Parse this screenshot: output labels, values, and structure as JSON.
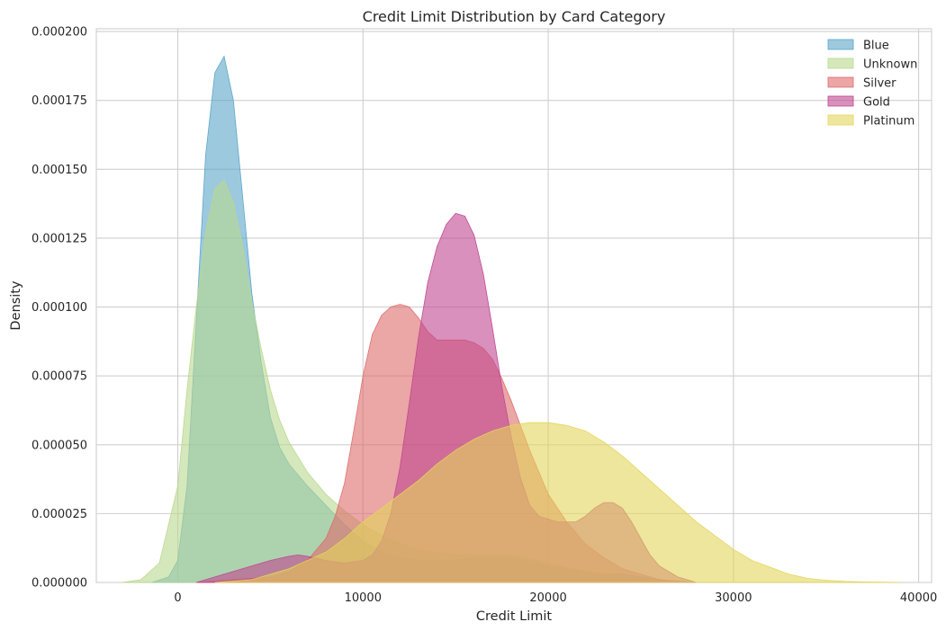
{
  "chart_data": {
    "type": "area",
    "title": "Credit Limit Distribution by Card Category",
    "xlabel": "Credit Limit",
    "ylabel": "Density",
    "xlim": [
      -4400,
      40700
    ],
    "ylim": [
      0,
      0.000201
    ],
    "x_ticks": [
      0,
      10000,
      20000,
      30000,
      40000
    ],
    "x_tick_labels": [
      "0",
      "10000",
      "20000",
      "30000",
      "40000"
    ],
    "y_ticks": [
      0,
      2.5e-05,
      5e-05,
      7.5e-05,
      0.0001,
      0.000125,
      0.00015,
      0.000175,
      0.0002
    ],
    "y_tick_labels": [
      "0.000000",
      "0.000025",
      "0.000050",
      "0.000075",
      "0.000100",
      "0.000125",
      "0.000150",
      "0.000175",
      "0.000200"
    ],
    "grid": true,
    "legend_position": "top-right",
    "series": [
      {
        "name": "Blue",
        "color": "#5aa5c8",
        "x": [
          -1400,
          -500,
          0,
          500,
          1000,
          1500,
          2000,
          2500,
          3000,
          3500,
          4000,
          4500,
          5000,
          5500,
          6000,
          7000,
          8000,
          9000,
          10000,
          11000,
          12000,
          13000,
          14000,
          15000,
          16000,
          17000,
          18000,
          19000,
          20000,
          21000,
          22000,
          23000,
          24000,
          25000,
          26000,
          27000,
          28000
        ],
        "values": [
          0,
          2e-06,
          8e-06,
          3.5e-05,
          9.5e-05,
          0.000155,
          0.000185,
          0.000191,
          0.000175,
          0.00014,
          0.000105,
          8e-05,
          6e-05,
          4.9e-05,
          4.3e-05,
          3.5e-05,
          2.8e-05,
          2.1e-05,
          1.5e-05,
          1.1e-05,
          9e-06,
          8e-06,
          8e-06,
          8e-06,
          9e-06,
          9e-06,
          9e-06,
          8e-06,
          6e-06,
          5e-06,
          4e-06,
          3e-06,
          3e-06,
          2e-06,
          1e-06,
          5e-07,
          0
        ]
      },
      {
        "name": "Unknown",
        "color": "#b9d88e",
        "x": [
          -3000,
          -2000,
          -1000,
          0,
          500,
          1000,
          1500,
          2000,
          2500,
          3000,
          3500,
          4000,
          4500,
          5000,
          5500,
          6000,
          7000,
          8000,
          9000,
          10000,
          11000,
          12000,
          13000,
          14000,
          15000,
          16000,
          17000,
          18000,
          19000,
          20000,
          22000,
          24000,
          26000
        ],
        "values": [
          0,
          1e-06,
          7e-06,
          3.5e-05,
          7e-05,
          0.0001,
          0.000127,
          0.000143,
          0.000146,
          0.000138,
          0.000122,
          0.000102,
          8.5e-05,
          7e-05,
          5.9e-05,
          5.1e-05,
          4e-05,
          3.2e-05,
          2.6e-05,
          2.1e-05,
          1.7e-05,
          1.4e-05,
          1.2e-05,
          1.1e-05,
          1e-05,
          1e-05,
          1e-05,
          1e-05,
          9e-06,
          7e-06,
          4e-06,
          2e-06,
          0
        ]
      },
      {
        "name": "Silver",
        "color": "#de6b6b",
        "x": [
          1000,
          3000,
          5000,
          6000,
          7000,
          8000,
          8500,
          9000,
          9500,
          10000,
          10500,
          11000,
          11500,
          12000,
          12500,
          13000,
          13500,
          14000,
          14500,
          15000,
          15500,
          16000,
          16500,
          17000,
          17500,
          18000,
          19000,
          20000,
          21000,
          22000,
          23000,
          24000,
          25000,
          26000,
          27000,
          28000
        ],
        "values": [
          0,
          1e-06,
          2e-06,
          4e-06,
          8e-06,
          1.6e-05,
          2.4e-05,
          3.6e-05,
          5.5e-05,
          7.5e-05,
          9e-05,
          9.7e-05,
          0.0001,
          0.000101,
          0.0001,
          9.6e-05,
          9.1e-05,
          8.8e-05,
          8.8e-05,
          8.8e-05,
          8.8e-05,
          8.7e-05,
          8.5e-05,
          8.1e-05,
          7.4e-05,
          6.6e-05,
          4.8e-05,
          3.2e-05,
          2.2e-05,
          1.4e-05,
          9e-06,
          5e-06,
          3e-06,
          1e-06,
          5e-07,
          0
        ]
      },
      {
        "name": "Gold",
        "color": "#c0468f",
        "x": [
          1000,
          2500,
          4000,
          5000,
          6000,
          6500,
          7000,
          8000,
          9000,
          10000,
          10500,
          11000,
          11500,
          12000,
          12500,
          13000,
          13500,
          14000,
          14500,
          15000,
          15500,
          16000,
          16500,
          17000,
          17500,
          18000,
          18500,
          19000,
          19500,
          20000,
          20500,
          21000,
          21500,
          22000,
          22500,
          23000,
          23500,
          24000,
          24500,
          25000,
          25500,
          26000,
          27000,
          28000
        ],
        "values": [
          0,
          3e-06,
          6e-06,
          8e-06,
          9.5e-06,
          1e-05,
          9.5e-06,
          8e-06,
          7e-06,
          8e-06,
          1e-05,
          1.5e-05,
          2.5e-05,
          4.2e-05,
          6.5e-05,
          8.9e-05,
          0.000109,
          0.000122,
          0.00013,
          0.000134,
          0.000133,
          0.000126,
          0.000112,
          9.2e-05,
          7.1e-05,
          5.3e-05,
          3.8e-05,
          2.8e-05,
          2.4e-05,
          2.3e-05,
          2.2e-05,
          2.2e-05,
          2.2e-05,
          2.4e-05,
          2.7e-05,
          2.9e-05,
          2.9e-05,
          2.7e-05,
          2.2e-05,
          1.6e-05,
          1e-05,
          6e-06,
          2e-06,
          0
        ]
      },
      {
        "name": "Platinum",
        "color": "#e3d65a",
        "x": [
          2000,
          4000,
          6000,
          7000,
          8000,
          9000,
          10000,
          11000,
          12000,
          13000,
          14000,
          15000,
          16000,
          17000,
          18000,
          19000,
          20000,
          21000,
          22000,
          23000,
          24000,
          25000,
          26000,
          27000,
          28000,
          29000,
          30000,
          31000,
          32000,
          33000,
          34000,
          35000,
          36000,
          37000,
          38000,
          39000
        ],
        "values": [
          0,
          1e-06,
          5e-06,
          8e-06,
          1.1e-05,
          1.6e-05,
          2.2e-05,
          2.7e-05,
          3.2e-05,
          3.7e-05,
          4.3e-05,
          4.8e-05,
          5.2e-05,
          5.5e-05,
          5.7e-05,
          5.8e-05,
          5.8e-05,
          5.7e-05,
          5.5e-05,
          5.1e-05,
          4.6e-05,
          4e-05,
          3.4e-05,
          2.8e-05,
          2.2e-05,
          1.7e-05,
          1.2e-05,
          8e-06,
          5.5e-06,
          3e-06,
          1.5e-06,
          8e-07,
          4e-07,
          2e-07,
          1e-07,
          0
        ]
      }
    ]
  }
}
